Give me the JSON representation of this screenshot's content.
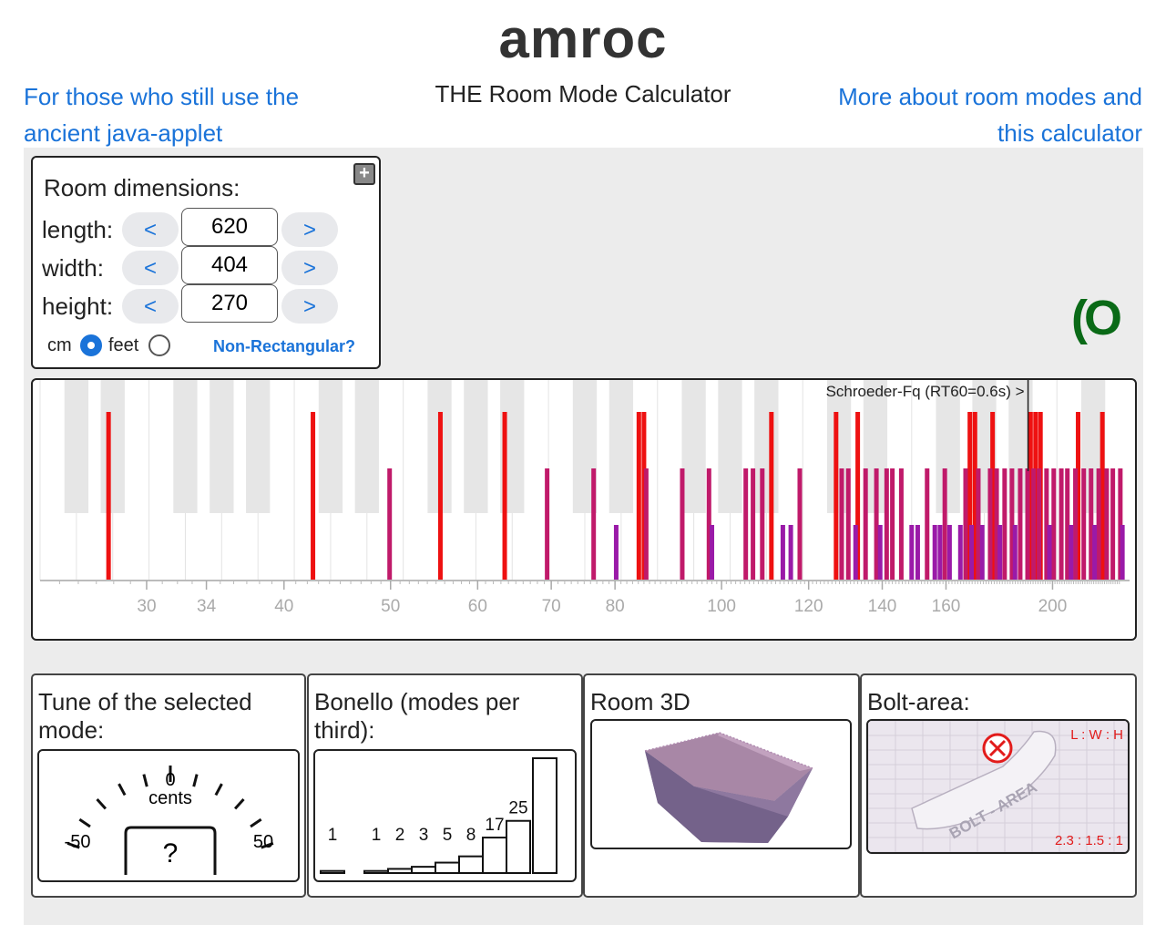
{
  "header": {
    "title": "amroc",
    "subtitle": "THE Room Mode Calculator",
    "link_left": "For those who still use the ancient java-applet",
    "link_right": "More about room modes and this calculator"
  },
  "dimensions": {
    "title": "Room dimensions:",
    "rows": [
      {
        "label": "length:",
        "value": "620"
      },
      {
        "label": "width:",
        "value": "404"
      },
      {
        "label": "height:",
        "value": "270"
      }
    ],
    "dec_label": "<",
    "inc_label": ">",
    "unit_cm": "cm",
    "unit_feet": "feet",
    "selected_unit": "cm",
    "non_rect": "Non-Rectangular?",
    "expand_icon": "plus-square-icon"
  },
  "chart_data": {
    "type": "bar",
    "title": "Schroeder-Fq (RT60=0.6s) >",
    "x_scale": "log",
    "xlim": [
      24,
      235
    ],
    "x_ticks": [
      30,
      34,
      40,
      50,
      60,
      70,
      80,
      100,
      120,
      140,
      160,
      200
    ],
    "schroeder_hz": 190,
    "series": [
      {
        "color": "#ee1111",
        "level": 3,
        "x": [
          27.7,
          42.5,
          55.5,
          63.5,
          84.1,
          85.0,
          111.0,
          127.1,
          133.0,
          168.2,
          170.0,
          176.4,
          191.0,
          193.0,
          195.0,
          211.0,
          222.0
        ]
      },
      {
        "color": "#c01a6a",
        "level": 2,
        "x": [
          49.9,
          69.4,
          76.5,
          85.4,
          92.1,
          97.4,
          105.2,
          106.8,
          108.9,
          117.8,
          128.6,
          130.4,
          135.2,
          138.3,
          141.3,
          143.0,
          145.7,
          153.8,
          159.6,
          166.7,
          171.2,
          175.5,
          177.9,
          180.9,
          183.7,
          186.9,
          189.8,
          192.2,
          194.4,
          197.5,
          200.5,
          203.7,
          206.3,
          209.8,
          213.5,
          216.8,
          220.3,
          224.0,
          226.9,
          230.5
        ]
      },
      {
        "color": "#9a1aa8",
        "level": 1,
        "x": [
          80.2,
          98.0,
          113.7,
          115.6,
          132.4,
          139.4,
          148.9,
          150.8,
          156.3,
          158.0,
          161.2,
          164.9,
          168.8,
          172.6,
          179.1,
          184.9,
          198.7,
          207.9,
          218.4,
          231.5
        ]
      }
    ]
  },
  "logo": "(O",
  "tune": {
    "title": "Tune of the selected mode:",
    "label_minus": "-50",
    "label_zero": "0",
    "label_plus": "50",
    "unit": "cents",
    "value": "?"
  },
  "bonello": {
    "title": "Bonello (modes per third):",
    "values": [
      1,
      1,
      2,
      3,
      5,
      8,
      17,
      25,
      55
    ]
  },
  "room3d": {
    "title": "Room 3D"
  },
  "bolt": {
    "title": "Bolt-area:",
    "ratio_header": "L : W : H",
    "ratio_value": "2.3 : 1.5 : 1",
    "watermark": "BOLT - AREA",
    "status_icon": "x-circle-icon"
  }
}
